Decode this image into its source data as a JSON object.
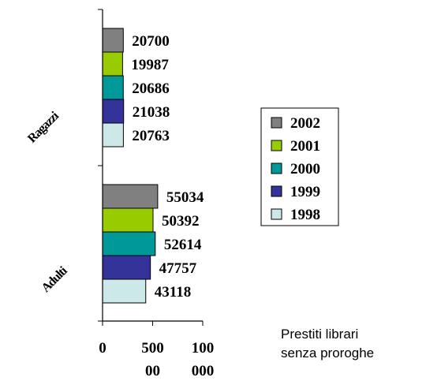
{
  "chart_data": {
    "type": "bar",
    "orientation": "horizontal",
    "categories": [
      "Ragazzi",
      "Adulti"
    ],
    "category_labels": [
      "Ragazzi",
      "Adulti"
    ],
    "series": [
      {
        "name": "2002",
        "color": "#808080",
        "values": [
          20700,
          55034
        ]
      },
      {
        "name": "2001",
        "color": "#99cc00",
        "values": [
          19987,
          50392
        ]
      },
      {
        "name": "2000",
        "color": "#009999",
        "values": [
          20686,
          52614
        ]
      },
      {
        "name": "1999",
        "color": "#333399",
        "values": [
          21038,
          47757
        ]
      },
      {
        "name": "1998",
        "color": "#cce8e8",
        "values": [
          20763,
          43118
        ]
      }
    ],
    "xlim": [
      0,
      100000
    ],
    "x_ticks": [
      {
        "value": 0,
        "lines": [
          "0"
        ]
      },
      {
        "value": 50000,
        "lines": [
          "500",
          "00"
        ]
      },
      {
        "value": 100000,
        "lines": [
          "100",
          "000"
        ]
      }
    ],
    "title": "",
    "xlabel": "",
    "ylabel": "",
    "grid": false,
    "legend": "right"
  },
  "caption": {
    "line1": "Prestiti librari",
    "line2": "senza proroghe"
  }
}
